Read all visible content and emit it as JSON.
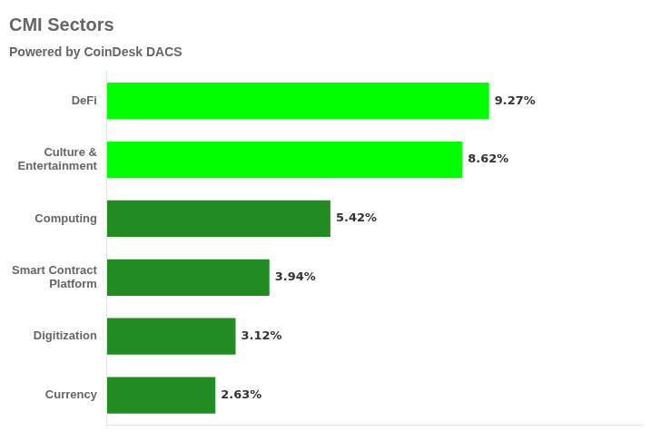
{
  "chart_data": {
    "type": "bar",
    "orientation": "horizontal",
    "title": "CMI Sectors",
    "subtitle": "Powered by CoinDesk DACS",
    "categories": [
      "Currency",
      "Digitization",
      "Smart Contract\nPlatform",
      "Computing",
      "Culture &\nEntertainment",
      "DeFi"
    ],
    "values": [
      2.63,
      3.12,
      3.94,
      5.42,
      8.62,
      9.27
    ],
    "value_labels": [
      "2.63%",
      "3.12%",
      "3.94%",
      "5.42%",
      "8.62%",
      "9.27%"
    ],
    "data_labels": true,
    "colors": [
      "#228B22",
      "#228B22",
      "#228B22",
      "#228B22",
      "#00ff00",
      "#00ff00"
    ],
    "xlim": [
      0,
      13.0
    ],
    "grid": false,
    "tick_labels": "y"
  }
}
